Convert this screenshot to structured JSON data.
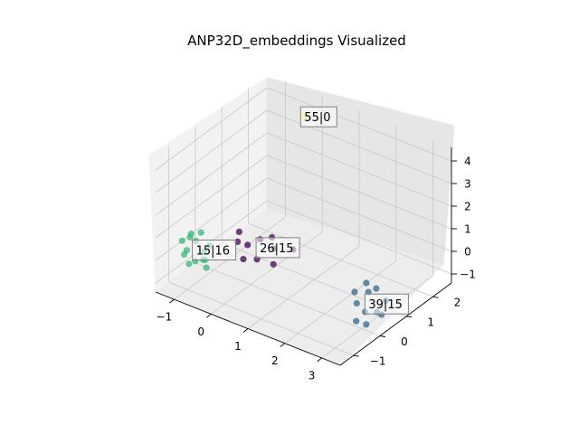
{
  "chart_data": {
    "type": "scatter3d",
    "title": "ANP32D_embeddings Visualized",
    "xlabel": "",
    "ylabel": "",
    "zlabel": "",
    "x_ticks": [
      "−1",
      "0",
      "1",
      "2",
      "3"
    ],
    "y_ticks": [
      "−1",
      "0",
      "1",
      "2"
    ],
    "z_ticks": [
      "−1",
      "0",
      "1",
      "2",
      "3",
      "4"
    ],
    "xlim": [
      -1.5,
      3.5
    ],
    "ylim": [
      -1.5,
      2.7
    ],
    "zlim": [
      -1.4,
      4.6
    ],
    "grid": true,
    "colors": {
      "cluster_15": "#35b779",
      "cluster_26": "#440154",
      "cluster_39": "#31688e",
      "cluster_55": "#fde725"
    },
    "labels": [
      {
        "text": "55|0",
        "cluster": "cluster_55"
      },
      {
        "text": "26|15",
        "cluster": "cluster_26"
      },
      {
        "text": "15|16",
        "cluster": "cluster_15"
      },
      {
        "text": "39|15",
        "cluster": "cluster_39"
      }
    ],
    "points": [
      {
        "cluster": "cluster_55",
        "x": -0.2,
        "y": 2.3,
        "z": 3.9
      },
      {
        "cluster": "cluster_26",
        "x": -0.3,
        "y": 0.3,
        "z": -0.1
      },
      {
        "cluster": "cluster_26",
        "x": -0.1,
        "y": 0.5,
        "z": 0.1
      },
      {
        "cluster": "cluster_26",
        "x": -0.5,
        "y": 0.2,
        "z": 0.0
      },
      {
        "cluster": "cluster_26",
        "x": 0.2,
        "y": 0.6,
        "z": -0.2
      },
      {
        "cluster": "cluster_26",
        "x": 0.5,
        "y": 0.9,
        "z": -0.3
      },
      {
        "cluster": "cluster_26",
        "x": 0.0,
        "y": 0.8,
        "z": 0.0
      },
      {
        "cluster": "cluster_26",
        "x": 0.4,
        "y": 0.3,
        "z": -0.5
      },
      {
        "cluster": "cluster_26",
        "x": -0.2,
        "y": 0.0,
        "z": -0.4
      },
      {
        "cluster": "cluster_26",
        "x": -0.6,
        "y": 0.4,
        "z": 0.2
      },
      {
        "cluster": "cluster_26",
        "x": 0.1,
        "y": 0.1,
        "z": -0.3
      },
      {
        "cluster": "cluster_15",
        "x": -1.5,
        "y": -0.5,
        "z": 0.0
      },
      {
        "cluster": "cluster_15",
        "x": -1.3,
        "y": -0.6,
        "z": -0.2
      },
      {
        "cluster": "cluster_15",
        "x": -1.2,
        "y": -0.4,
        "z": 0.1
      },
      {
        "cluster": "cluster_15",
        "x": -1.0,
        "y": -0.7,
        "z": -0.4
      },
      {
        "cluster": "cluster_15",
        "x": -0.9,
        "y": -0.5,
        "z": -0.1
      },
      {
        "cluster": "cluster_15",
        "x": -1.4,
        "y": -0.3,
        "z": 0.2
      },
      {
        "cluster": "cluster_15",
        "x": -1.1,
        "y": -0.8,
        "z": -0.5
      },
      {
        "cluster": "cluster_15",
        "x": -0.8,
        "y": -0.6,
        "z": -0.3
      },
      {
        "cluster": "cluster_15",
        "x": -1.2,
        "y": -0.2,
        "z": 0.3
      },
      {
        "cluster": "cluster_15",
        "x": -1.0,
        "y": -0.4,
        "z": -0.6
      },
      {
        "cluster": "cluster_15",
        "x": -0.7,
        "y": -0.7,
        "z": -0.5
      },
      {
        "cluster": "cluster_15",
        "x": -1.3,
        "y": -0.7,
        "z": -0.3
      },
      {
        "cluster": "cluster_15",
        "x": -0.9,
        "y": -0.3,
        "z": 0.0
      },
      {
        "cluster": "cluster_15",
        "x": -1.5,
        "y": -0.2,
        "z": -0.1
      },
      {
        "cluster": "cluster_39",
        "x": 2.6,
        "y": 0.3,
        "z": -0.3
      },
      {
        "cluster": "cluster_39",
        "x": 2.8,
        "y": 0.1,
        "z": -0.5
      },
      {
        "cluster": "cluster_39",
        "x": 2.9,
        "y": 0.4,
        "z": -0.2
      },
      {
        "cluster": "cluster_39",
        "x": 3.1,
        "y": 0.0,
        "z": -0.6
      },
      {
        "cluster": "cluster_39",
        "x": 3.2,
        "y": 0.3,
        "z": -0.8
      },
      {
        "cluster": "cluster_39",
        "x": 3.0,
        "y": -0.2,
        "z": -0.9
      },
      {
        "cluster": "cluster_39",
        "x": 3.3,
        "y": 0.5,
        "z": -0.4
      },
      {
        "cluster": "cluster_39",
        "x": 2.7,
        "y": 0.6,
        "z": -0.1
      },
      {
        "cluster": "cluster_39",
        "x": 3.4,
        "y": 0.2,
        "z": -0.7
      },
      {
        "cluster": "cluster_39",
        "x": 3.2,
        "y": -0.1,
        "z": -1.0
      },
      {
        "cluster": "cluster_39",
        "x": 2.9,
        "y": 0.7,
        "z": -0.3
      }
    ]
  }
}
